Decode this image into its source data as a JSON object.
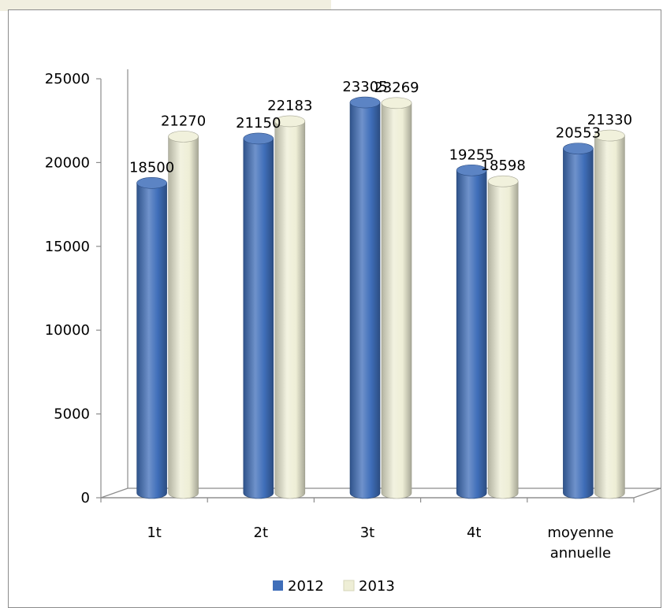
{
  "chart_data": {
    "type": "bar",
    "title": "",
    "xlabel": "",
    "ylabel": "",
    "categories": [
      [
        "1t"
      ],
      [
        "2t"
      ],
      [
        "3t"
      ],
      [
        "4t"
      ],
      [
        "moyenne",
        "annuelle"
      ]
    ],
    "series": [
      {
        "name": "2012",
        "values": [
          18500,
          21150,
          23305,
          19255,
          20553
        ],
        "labels": [
          "18500",
          "21150",
          "23305",
          "19255",
          "20553"
        ],
        "color": "#3f6eb9"
      },
      {
        "name": "2013",
        "values": [
          21270,
          22183,
          23269,
          18598,
          21330
        ],
        "labels": [
          "21270",
          "22183",
          "23269",
          "18598",
          "21330"
        ],
        "color": "#eeeed6"
      }
    ],
    "ylim": [
      0,
      25000
    ],
    "yticks": [
      0,
      5000,
      10000,
      15000,
      20000,
      25000
    ],
    "ytick_labels": [
      "0",
      "5000",
      "10000",
      "15000",
      "20000",
      "25000"
    ],
    "grid": false,
    "legend": "bottom"
  }
}
